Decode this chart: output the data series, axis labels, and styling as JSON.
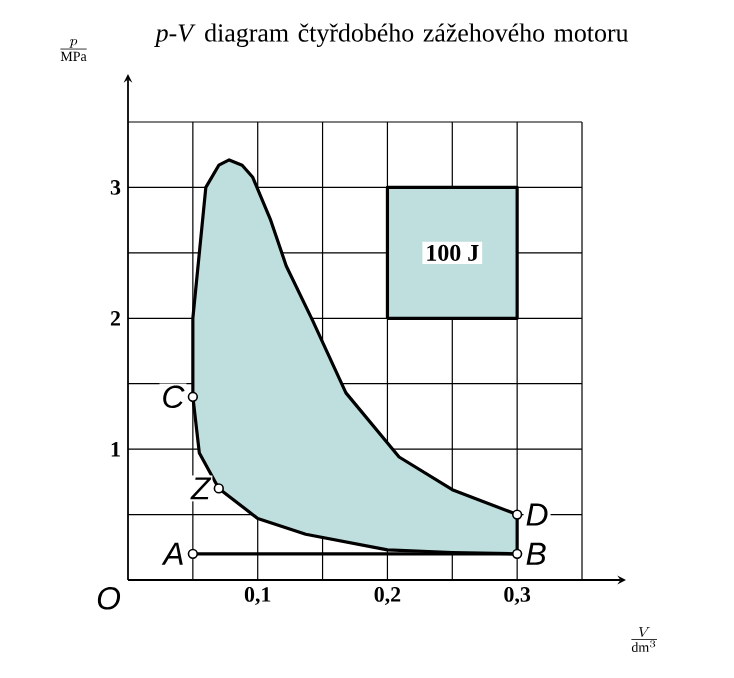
{
  "chart_data": {
    "type": "line",
    "title": "*p*-*V* diagram čtyřdobého zážehového motoru",
    "xlabel": "\\frac{V}{\\mathrm{dm}^3}",
    "ylabel": "\\frac{p}{\\mathrm{MPa}}",
    "xlim": [
      0,
      0.35
    ],
    "ylim": [
      0,
      3.5
    ],
    "xticks": [
      {
        "value": 0.05,
        "label": null
      },
      {
        "value": 0.1,
        "label": "0,1"
      },
      {
        "value": 0.15,
        "label": null
      },
      {
        "value": 0.2,
        "label": "0,2"
      },
      {
        "value": 0.25,
        "label": null
      },
      {
        "value": 0.3,
        "label": "0,3"
      },
      {
        "value": 0.35,
        "label": null
      }
    ],
    "yticks": [
      {
        "value": 0.5,
        "label": null
      },
      1,
      {
        "value": 1.5,
        "label": null
      },
      2,
      {
        "value": 2.5,
        "label": null
      },
      3,
      {
        "value": 3.5,
        "label": null
      }
    ],
    "grid": true,
    "series": [
      {
        "color": "#000000",
        "marker": "circle",
        "x": [
          0.05,
          0.3
        ],
        "values": [
          0.2,
          0.2
        ]
      },
      {
        "type": "area",
        "color": "#bfdede",
        "x": [
          0.3,
          0.25,
          0.2,
          0.137,
          0.1,
          0.07,
          0.055,
          0.05,
          0.05,
          0.06,
          0.07,
          0.078,
          0.088,
          0.096,
          0.11,
          0.122,
          0.142,
          0.168,
          0.209,
          0.25,
          0.3,
          0.3
        ],
        "values": [
          0.2,
          0.21,
          0.23,
          0.35,
          0.47,
          0.7,
          0.97,
          1.4,
          2.0,
          3.0,
          3.17,
          3.21,
          3.17,
          3.08,
          2.75,
          2.4,
          1.99,
          1.43,
          0.94,
          0.69,
          0.5,
          0.2
        ]
      },
      {
        "type": "area",
        "color": "#bfdede",
        "x": [
          0.2,
          0.3,
          0.3,
          0.2,
          0.2
        ],
        "values": [
          2,
          2,
          3,
          3,
          2
        ]
      },
      {
        "type": "scatter",
        "color": "#000000",
        "marker": "circle",
        "x": [
          0.05,
          0.3,
          0.07
        ],
        "values": [
          1.4,
          0.5,
          0.7
        ]
      }
    ],
    "annotations": [
      {
        "text": "100 J",
        "x": 0.25,
        "y": 2.5
      },
      {
        "text": "A",
        "x": 0.05,
        "y": 0.2
      },
      {
        "text": "B",
        "x": 0.3,
        "y": 0.2
      },
      {
        "text": "C",
        "x": 0.05,
        "y": 1.4
      },
      {
        "text": "D",
        "x": 0.3,
        "y": 0.5
      },
      {
        "text": "Z",
        "x": 0.07,
        "y": 0.7
      },
      "O"
    ]
  }
}
